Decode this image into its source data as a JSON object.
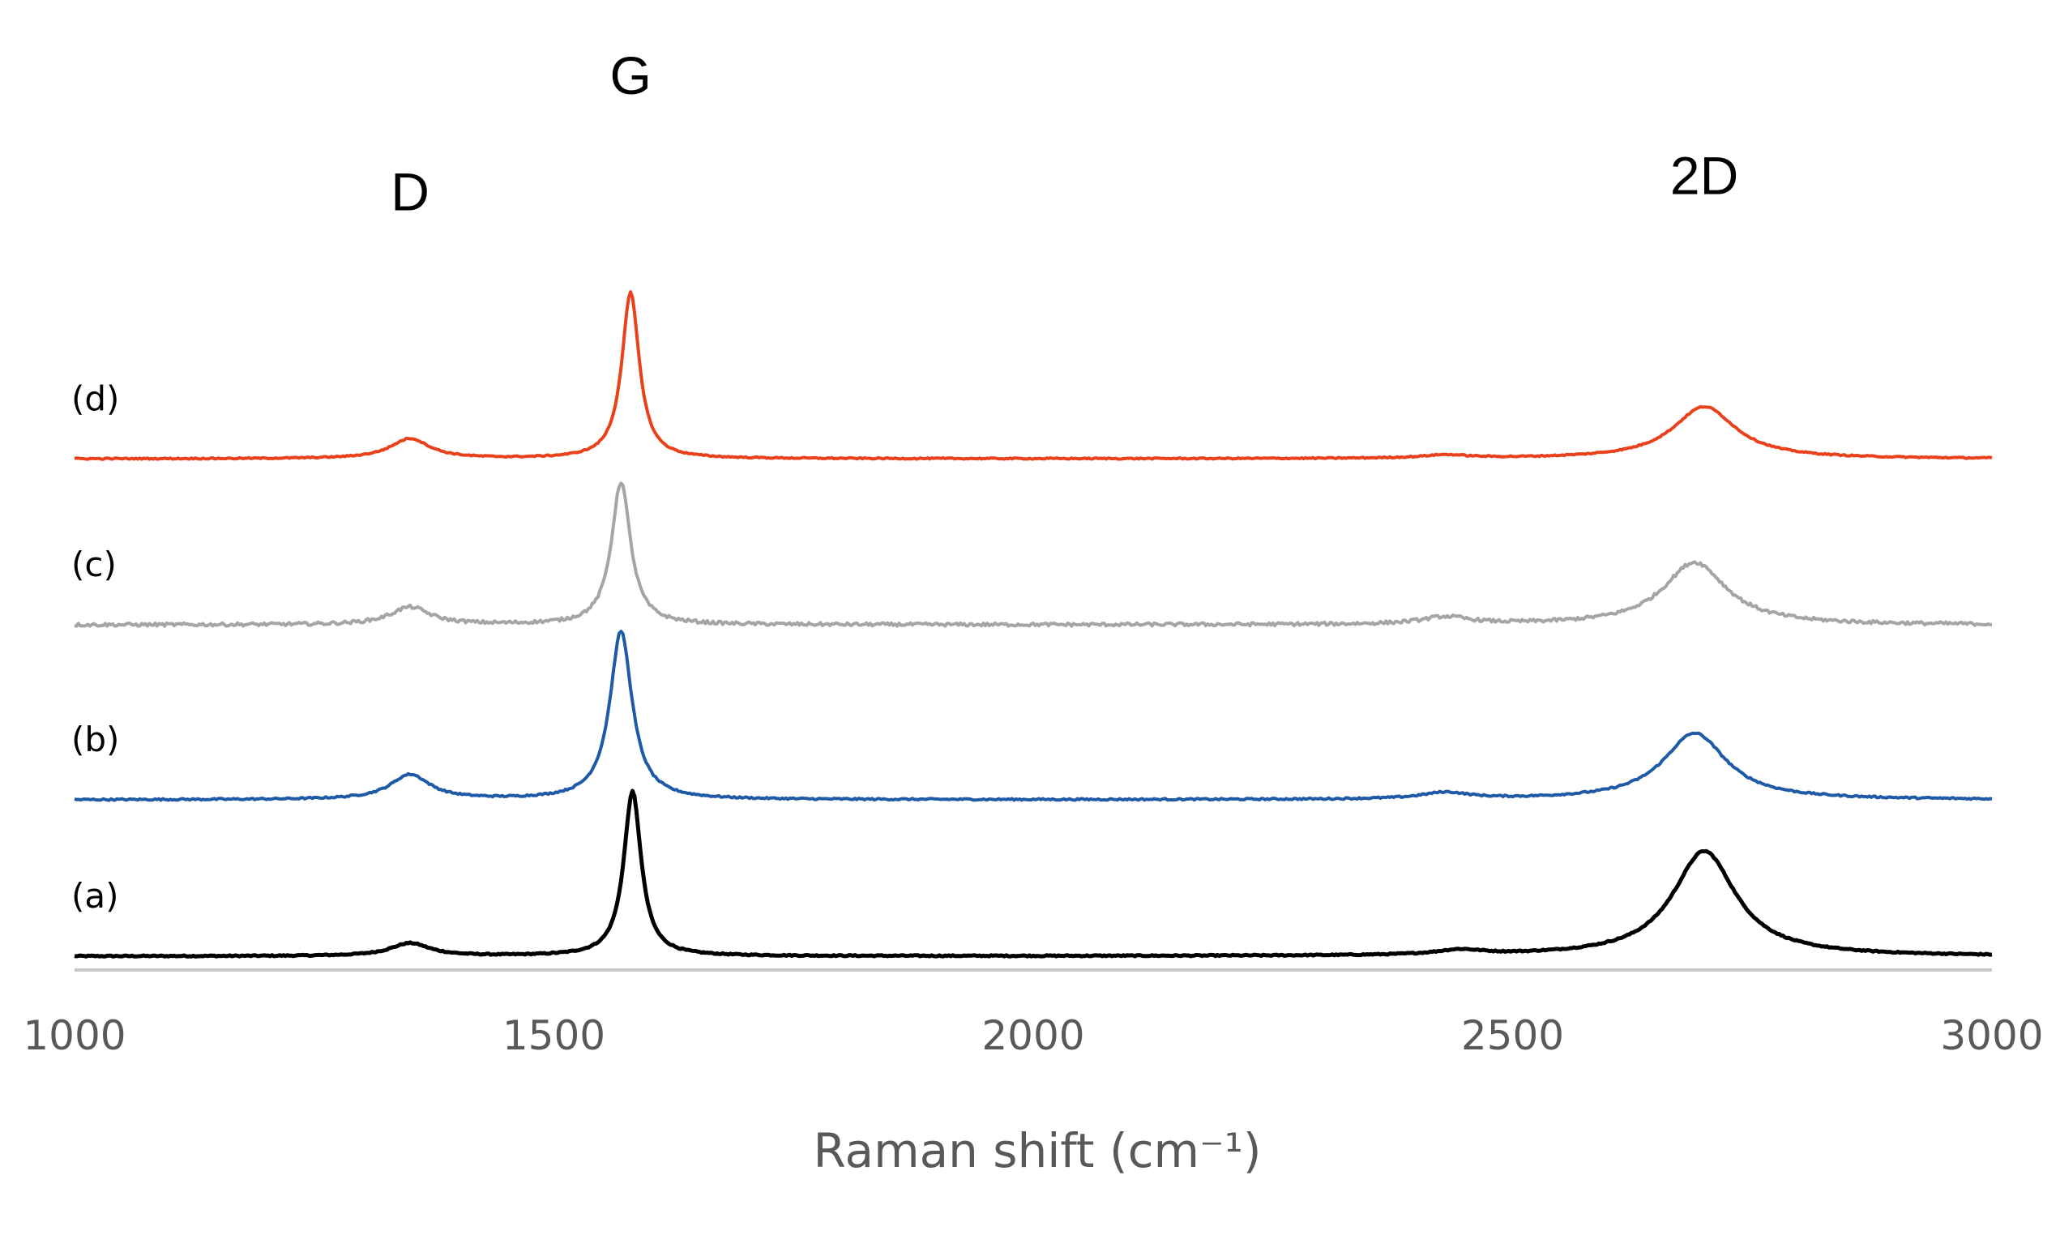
{
  "chart_data": {
    "type": "line",
    "title": "",
    "xlabel": "Raman shift (cm⁻¹)",
    "ylabel": "",
    "xlim": [
      1000,
      3000
    ],
    "ylim": [
      0,
      1
    ],
    "xticks": [
      "1000",
      "1500",
      "2000",
      "2500",
      "3000"
    ],
    "grid": false,
    "legend": "none",
    "peak_annotations": [
      {
        "label": "D",
        "x": 1350,
        "y": 0.935
      },
      {
        "label": "G",
        "x": 1580,
        "y": 1.08
      },
      {
        "label": "2D",
        "x": 2700,
        "y": 0.955
      }
    ],
    "series": [
      {
        "name": "(a)",
        "color": "#000000",
        "baseline": 0.005,
        "peaks": [
          {
            "center": 1350,
            "height": 0.016,
            "width": 25
          },
          {
            "center": 1582,
            "height": 0.205,
            "width": 11
          },
          {
            "center": 2445,
            "height": 0.006,
            "width": 30
          },
          {
            "center": 2700,
            "height": 0.131,
            "width": 40
          }
        ]
      },
      {
        "name": "(b)",
        "color": "#1f5aa6",
        "baseline": 0.2,
        "peaks": [
          {
            "center": 1350,
            "height": 0.031,
            "width": 25
          },
          {
            "center": 1570,
            "height": 0.21,
            "width": 14
          },
          {
            "center": 2430,
            "height": 0.008,
            "width": 30
          },
          {
            "center": 2690,
            "height": 0.083,
            "width": 40
          }
        ]
      },
      {
        "name": "(c)",
        "color": "#a5a5a5",
        "baseline": 0.418,
        "peaks": [
          {
            "center": 1350,
            "height": 0.022,
            "width": 25
          },
          {
            "center": 1570,
            "height": 0.178,
            "width": 12
          },
          {
            "center": 2430,
            "height": 0.009,
            "width": 30
          },
          {
            "center": 2690,
            "height": 0.078,
            "width": 40
          }
        ]
      },
      {
        "name": "(d)",
        "color": "#e8411b",
        "baseline": 0.625,
        "peaks": [
          {
            "center": 1350,
            "height": 0.025,
            "width": 25
          },
          {
            "center": 1580,
            "height": 0.207,
            "width": 11
          },
          {
            "center": 2430,
            "height": 0.004,
            "width": 30
          },
          {
            "center": 2700,
            "height": 0.065,
            "width": 40
          }
        ]
      }
    ]
  }
}
